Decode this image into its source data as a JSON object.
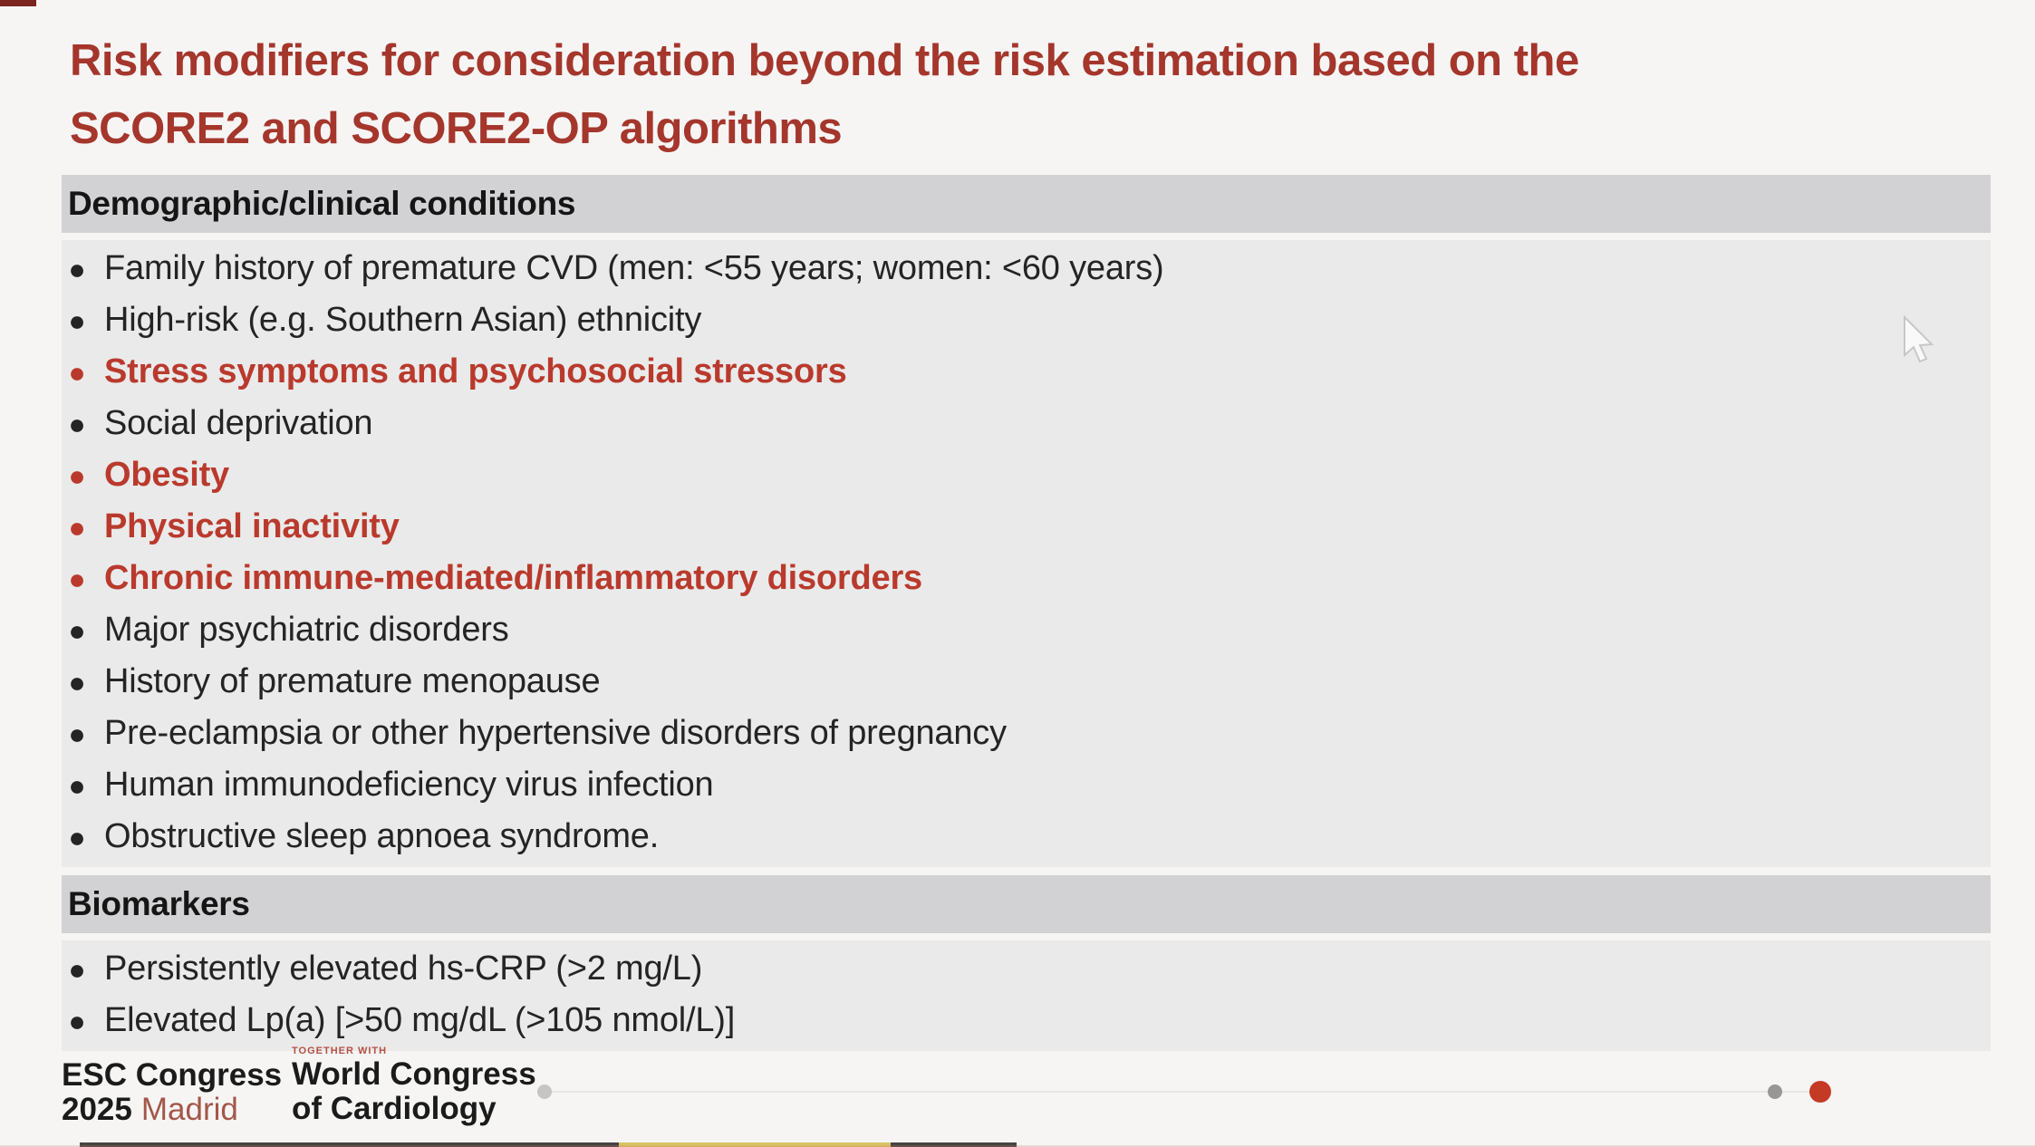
{
  "title": {
    "line1": "Risk modifiers for consideration beyond the risk estimation based on the",
    "line2": "SCORE2 and SCORE2-OP algorithms"
  },
  "table": {
    "sections": [
      {
        "header": "Demographic/clinical conditions",
        "items": [
          {
            "text": "Family history of premature CVD (men: <55 years; women: <60 years)",
            "emphasis": false
          },
          {
            "text": "High-risk (e.g. Southern Asian) ethnicity",
            "emphasis": false
          },
          {
            "text": "Stress symptoms and psychosocial stressors",
            "emphasis": true
          },
          {
            "text": "Social deprivation",
            "emphasis": false
          },
          {
            "text": "Obesity",
            "emphasis": true
          },
          {
            "text": "Physical inactivity",
            "emphasis": true
          },
          {
            "text": "Chronic immune-mediated/inflammatory disorders",
            "emphasis": true
          },
          {
            "text": "Major psychiatric disorders",
            "emphasis": false
          },
          {
            "text": "History of premature menopause",
            "emphasis": false
          },
          {
            "text": "Pre-eclampsia or other hypertensive disorders of pregnancy",
            "emphasis": false
          },
          {
            "text": "Human immunodeficiency virus infection",
            "emphasis": false
          },
          {
            "text": "Obstructive sleep apnoea syndrome.",
            "emphasis": false
          }
        ]
      },
      {
        "header": "Biomarkers",
        "items": [
          {
            "text": "Persistently elevated hs-CRP (>2 mg/L)",
            "emphasis": false
          },
          {
            "text": "Elevated Lp(a) [>50 mg/dL (>105 nmol/L)]",
            "emphasis": false
          }
        ]
      }
    ]
  },
  "footer": {
    "congress": {
      "name": "ESC Congress",
      "year": "2025",
      "city": "Madrid"
    },
    "together_with": "TOGETHER WITH",
    "world_congress": {
      "line1": "World Congress",
      "line2": "of Cardiology"
    }
  },
  "colors": {
    "title_red": "#A5362C",
    "emphasis_red": "#B93A2D",
    "header_bar_bg": "#D2D2D4",
    "section_bg": "#EAEAEA",
    "madrid_red": "#A4564A",
    "progress_red": "#C53A24"
  }
}
